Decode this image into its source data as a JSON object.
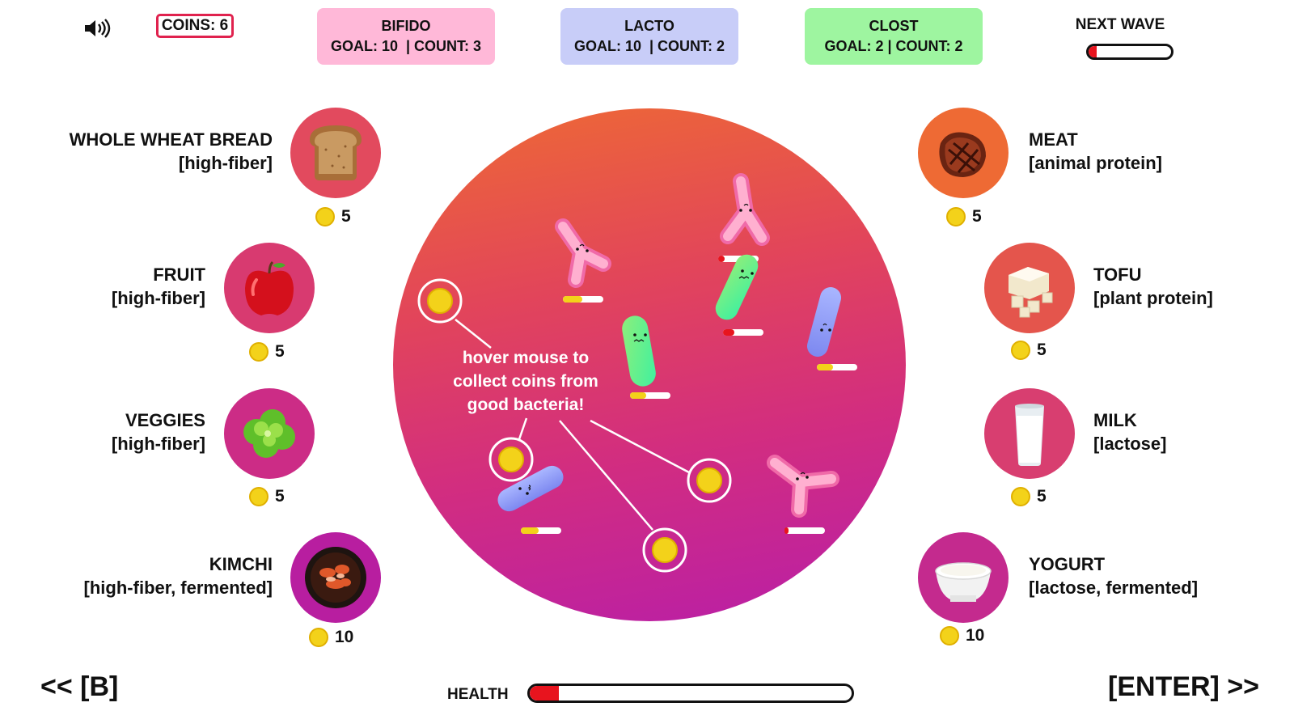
{
  "header": {
    "coins_label": "COINS: 6",
    "goals": [
      {
        "title": "BIFIDO",
        "line": "GOAL: 10  | COUNT: 3",
        "color": "#ffb8d8"
      },
      {
        "title": "LACTO",
        "line": "GOAL: 10  | COUNT: 2",
        "color": "#c8cdf8"
      },
      {
        "title": "CLOST",
        "line": "GOAL: 2 | COUNT: 2",
        "color": "#9ef5a0"
      }
    ],
    "next_wave_label": "NEXT WAVE",
    "next_wave_progress": 0.1
  },
  "arena": {
    "hint": "hover mouse to collect coins from good bacteria!"
  },
  "foods_left": [
    {
      "name": "WHOLE WHEAT BREAD",
      "tag": "[high-fiber]",
      "cost": "5",
      "icon": "bread-icon",
      "circle": "#e24a5e"
    },
    {
      "name": "FRUIT",
      "tag": "[high-fiber]",
      "cost": "5",
      "icon": "apple-icon",
      "circle": "#d83a70"
    },
    {
      "name": "VEGGIES",
      "tag": "[high-fiber]",
      "cost": "5",
      "icon": "lettuce-icon",
      "circle": "#cc2c86"
    },
    {
      "name": "KIMCHI",
      "tag": "[high-fiber, fermented]",
      "cost": "10",
      "icon": "kimchi-icon",
      "circle": "#b81ea0"
    }
  ],
  "foods_right": [
    {
      "name": "MEAT",
      "tag": "[animal protein]",
      "cost": "5",
      "icon": "steak-icon",
      "circle": "#ee6a34"
    },
    {
      "name": "TOFU",
      "tag": "[plant protein]",
      "cost": "5",
      "icon": "tofu-icon",
      "circle": "#e4554c"
    },
    {
      "name": "MILK",
      "tag": "[lactose]",
      "cost": "5",
      "icon": "milk-icon",
      "circle": "#d83e70"
    },
    {
      "name": "YOGURT",
      "tag": "[lactose, fermented]",
      "cost": "10",
      "icon": "yogurt-icon",
      "circle": "#c42a8e"
    }
  ],
  "footer": {
    "back_label": "<< [B]",
    "enter_label": "[ENTER] >>",
    "health_label": "HEALTH",
    "health_progress": 0.09
  }
}
